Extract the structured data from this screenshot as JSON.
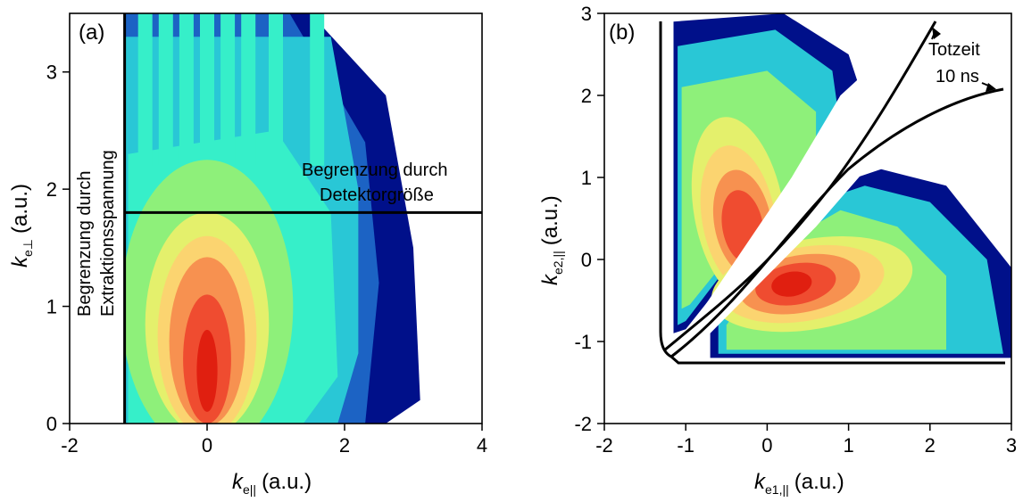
{
  "chart_data": [
    {
      "panel_label": "(a)",
      "type": "heatmap",
      "xlabel": "k",
      "xlabel_sub": "e||",
      "xlabel_unit": "(a.u.)",
      "ylabel": "k",
      "ylabel_sub": "e⊥",
      "ylabel_unit": "(a.u.)",
      "xlim": [
        -2,
        4
      ],
      "ylim": [
        0,
        3.5
      ],
      "xticks": [
        -2,
        0,
        2,
        4
      ],
      "yticks": [
        0,
        1,
        2,
        3
      ],
      "colors": [
        "#00108a",
        "#1c63c4",
        "#29c7d6",
        "#36efc9",
        "#8ef07a",
        "#e4f06c",
        "#fbd470",
        "#f79150",
        "#ef4c30",
        "#e01f10"
      ],
      "limit_lines": {
        "vertical_x": -1.2,
        "horizontal_y": 1.8
      },
      "annotations": [
        {
          "text": "Begrenzung durch",
          "role": "vertical-line-label-1"
        },
        {
          "text": "Extraktionsspannung",
          "role": "vertical-line-label-2"
        },
        {
          "text": "Begrenzung durch",
          "role": "horizontal-line-label-1"
        },
        {
          "text": "Detektorgröße",
          "role": "horizontal-line-label-2"
        }
      ]
    },
    {
      "panel_label": "(b)",
      "type": "heatmap",
      "xlabel": "k",
      "xlabel_sub": "e1,||",
      "xlabel_unit": "(a.u.)",
      "ylabel": "k",
      "ylabel_sub": "e2,||",
      "ylabel_unit": "(a.u.)",
      "xlim": [
        -2,
        3
      ],
      "ylim": [
        -2,
        3
      ],
      "xticks": [
        -2,
        -1,
        0,
        1,
        2,
        3
      ],
      "yticks": [
        -2,
        -1,
        0,
        1,
        2,
        3
      ],
      "colors": [
        "#00108a",
        "#1c63c4",
        "#29c7d6",
        "#36efc9",
        "#8ef07a",
        "#e4f06c",
        "#fbd470",
        "#f79150",
        "#ef4c30",
        "#e01f10"
      ],
      "annotations": [
        {
          "text": "Totzeit",
          "role": "deadtime-label-1"
        },
        {
          "text": "10 ns",
          "role": "deadtime-label-2"
        }
      ]
    }
  ]
}
